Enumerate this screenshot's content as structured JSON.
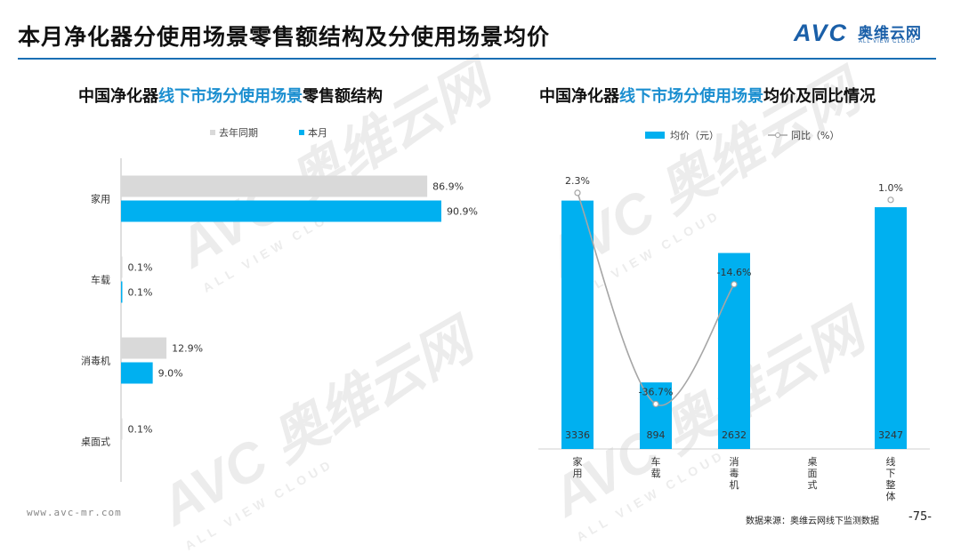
{
  "page": {
    "title": "本月净化器分使用场景零售额结构及分使用场景均价",
    "logo_mark": "AVC",
    "logo_cn": "奥维云网",
    "logo_en": "ALL VIEW CLOUD",
    "website": "www.avc-mr.com",
    "source": "数据来源：奥维云网线下监测数据",
    "page_number": "-75-",
    "watermark_big": "AVC 奥维云网",
    "watermark_small": "ALL VIEW CLOUD"
  },
  "colors": {
    "accent": "#00b0f0",
    "prior": "#d9d9d9",
    "title_blue": "#1c8fd0",
    "line": "#a6a6a6"
  },
  "chart_data": [
    {
      "type": "bar",
      "orientation": "horizontal",
      "title_parts": [
        "中国净化器",
        "线下市场分使用场景",
        "零售额结构"
      ],
      "categories": [
        "家用",
        "车载",
        "消毒机",
        "桌面式"
      ],
      "series": [
        {
          "name": "去年同期",
          "values": [
            86.9,
            0.1,
            12.9,
            0.1
          ],
          "labels": [
            "86.9%",
            "0.1%",
            "12.9%",
            "0.1%"
          ]
        },
        {
          "name": "本月",
          "values": [
            90.9,
            0.1,
            9.0,
            null
          ],
          "labels": [
            "90.9%",
            "0.1%",
            "9.0%",
            ""
          ]
        }
      ],
      "unit": "%",
      "xlim": [
        0,
        100
      ],
      "legend": "top"
    },
    {
      "type": "bar+line",
      "title_parts": [
        "中国净化器",
        "线下市场分使用场景",
        "均价及同比情况"
      ],
      "categories": [
        "家用",
        "车载",
        "消毒机",
        "桌面式",
        "线下整体"
      ],
      "bar_series": {
        "name": "均价（元）",
        "values": [
          3336,
          894,
          2632,
          null,
          3247
        ],
        "labels": [
          "3336",
          "894",
          "2632",
          "",
          "3247"
        ]
      },
      "line_series": {
        "name": "同比（%）",
        "values": [
          2.3,
          -36.7,
          -14.6,
          null,
          1.0
        ],
        "labels": [
          "2.3%",
          "-36.7%",
          "-14.6%",
          "",
          "1.0%"
        ]
      },
      "bar_ylim": [
        0,
        4000
      ],
      "line_ylim": [
        -45,
        10
      ],
      "legend": "top"
    }
  ]
}
